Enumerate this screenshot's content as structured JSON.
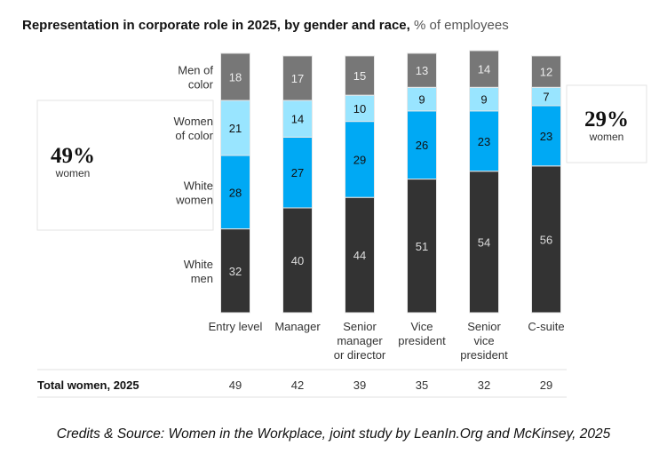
{
  "chart_data": {
    "type": "bar",
    "stacked": true,
    "title": "Representation in corporate role in 2025, by gender and race,",
    "unit_label": "% of employees",
    "categories": [
      [
        "Entry level"
      ],
      [
        "Manager"
      ],
      [
        "Senior",
        "manager",
        "or director"
      ],
      [
        "Vice",
        "president"
      ],
      [
        "Senior",
        "vice",
        "president"
      ],
      [
        "C-suite"
      ]
    ],
    "series": [
      {
        "name": "White men",
        "label_lines": [
          "White",
          "men"
        ],
        "color": "#333333",
        "text_color": "#dddddd",
        "values": [
          32,
          40,
          44,
          51,
          54,
          56
        ]
      },
      {
        "name": "White women",
        "label_lines": [
          "White",
          "women"
        ],
        "color": "#00a9f4",
        "text_color": "#111111",
        "values": [
          28,
          27,
          29,
          26,
          23,
          23
        ]
      },
      {
        "name": "Women of color",
        "label_lines": [
          "Women",
          "of color"
        ],
        "color": "#99e5ff",
        "text_color": "#111111",
        "values": [
          21,
          14,
          10,
          9,
          9,
          7
        ]
      },
      {
        "name": "Men of color",
        "label_lines": [
          "Men of",
          "color"
        ],
        "color": "#777777",
        "text_color": "#eeeeee",
        "values": [
          18,
          17,
          15,
          13,
          14,
          12
        ]
      }
    ],
    "callouts": [
      {
        "value": "49%",
        "label": "women",
        "category_index": 0
      },
      {
        "value": "29%",
        "label": "women",
        "category_index": 5
      }
    ],
    "table": {
      "row_label": "Total women, 2025",
      "values": [
        49,
        42,
        39,
        35,
        32,
        29
      ]
    },
    "ylim": [
      0,
      100
    ],
    "grid": false
  },
  "credits": "Credits & Source: Women in the Workplace, joint study by LeanIn.Org and McKinsey, 2025"
}
